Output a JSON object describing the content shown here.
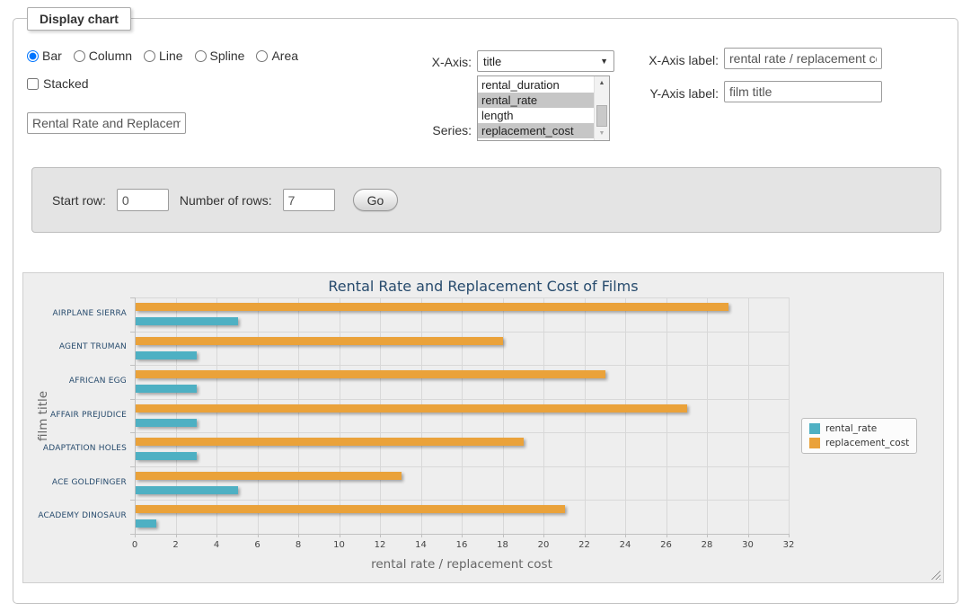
{
  "fieldset": {
    "legend": "Display chart"
  },
  "controls": {
    "chart_type": {
      "options": [
        "Bar",
        "Column",
        "Line",
        "Spline",
        "Area"
      ],
      "selected": "Bar"
    },
    "stacked": {
      "label": "Stacked",
      "checked": false
    },
    "chart_title_input": {
      "value": "Rental Rate and Replacement Cost of Films"
    },
    "x_axis": {
      "label": "X-Axis:",
      "selected": "title"
    },
    "series": {
      "label": "Series:",
      "options": [
        {
          "label": "rental_duration",
          "selected": false
        },
        {
          "label": "rental_rate",
          "selected": true
        },
        {
          "label": "length",
          "selected": false
        },
        {
          "label": "replacement_cost",
          "selected": true
        }
      ]
    },
    "x_axis_label": {
      "label": "X-Axis label:",
      "value": "rental rate / replacement cost"
    },
    "y_axis_label": {
      "label": "Y-Axis label:",
      "value": "film title"
    }
  },
  "row_form": {
    "start_row": {
      "label": "Start row:",
      "value": "0"
    },
    "number_of_rows": {
      "label": "Number of rows:",
      "value": "7"
    },
    "go_button": "Go"
  },
  "chart_data": {
    "type": "bar",
    "title": "Rental Rate and Replacement Cost of Films",
    "categories": [
      "AIRPLANE SIERRA",
      "AGENT TRUMAN",
      "AFRICAN EGG",
      "AFFAIR PREJUDICE",
      "ADAPTATION HOLES",
      "ACE GOLDFINGER",
      "ACADEMY DINOSAUR"
    ],
    "series": [
      {
        "name": "rental_rate",
        "color": "#4EB0C3",
        "values": [
          4.99,
          2.99,
          2.99,
          2.99,
          2.99,
          4.99,
          0.99
        ]
      },
      {
        "name": "replacement_cost",
        "color": "#EAA23A",
        "values": [
          28.99,
          17.99,
          22.99,
          26.99,
          18.99,
          12.99,
          20.99
        ]
      }
    ],
    "series_draw_order": [
      "replacement_cost",
      "rental_rate"
    ],
    "xlabel": "rental rate / replacement cost",
    "ylabel": "film title",
    "xlim": [
      0,
      32
    ],
    "xtick_step": 2,
    "grid": true,
    "legend_position": "right",
    "colors": {
      "title": "#274B6D",
      "category_label": "#274B6D",
      "tick_label": "#444444",
      "axis_title": "#666666",
      "plot_bg": "#EEEEEE",
      "grid_line": "#D8D8D8",
      "axis_line": "#C0C0C0"
    }
  }
}
